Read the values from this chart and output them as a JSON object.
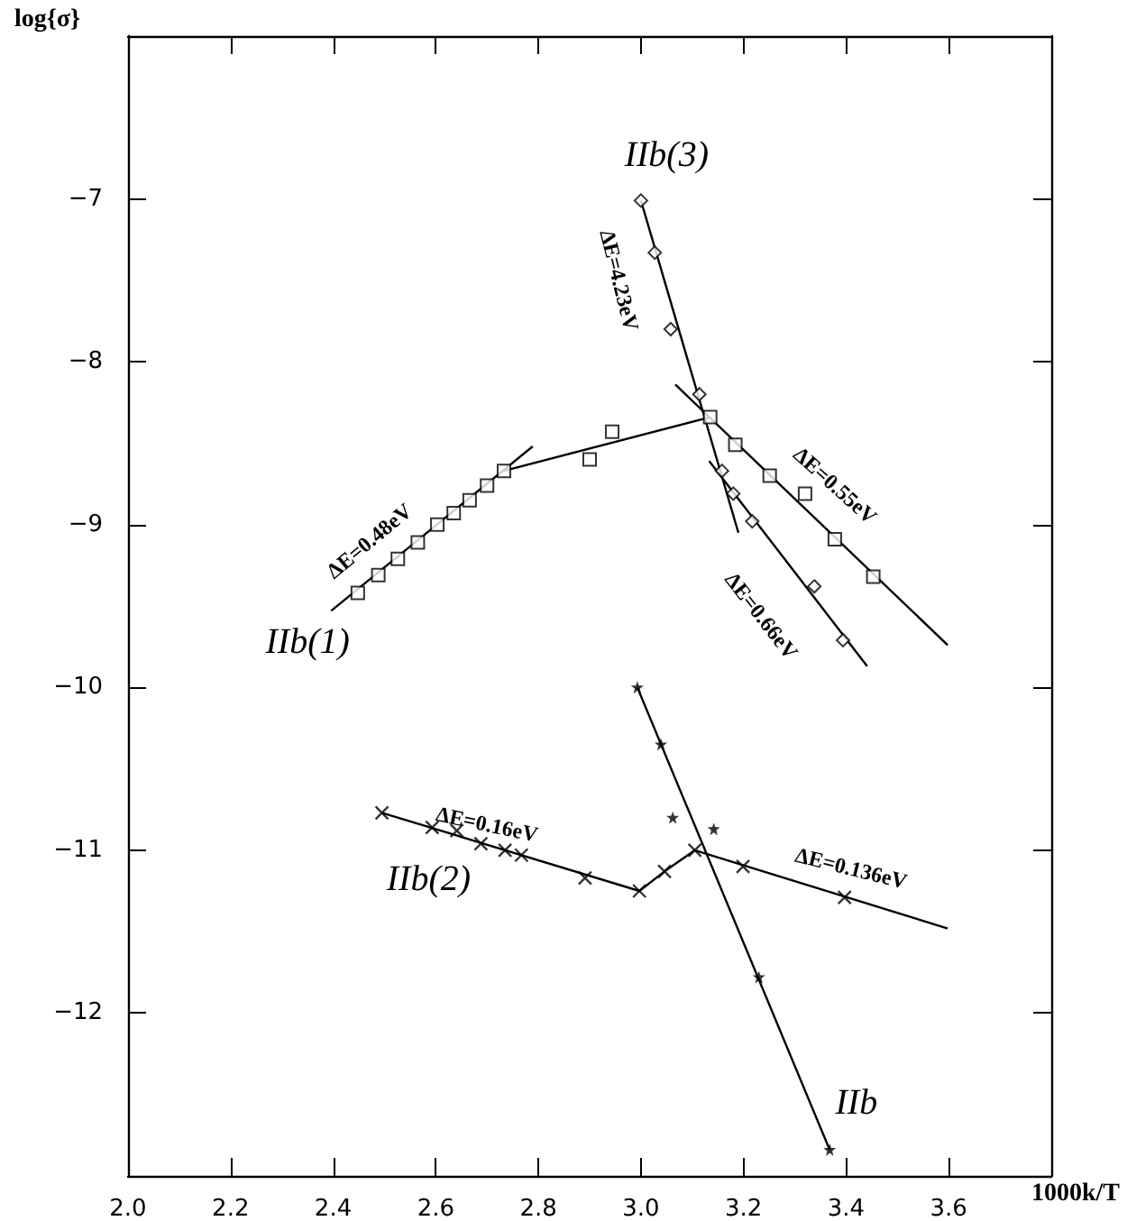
{
  "chart_data": {
    "type": "scatter",
    "xlabel": "1000k/T",
    "ylabel": "log{σ}",
    "xlim": [
      2.0,
      3.8
    ],
    "ylim": [
      -13,
      -6
    ],
    "xticks": [
      {
        "value": 2.0,
        "label": "2.0"
      },
      2.2,
      2.4,
      2.6,
      2.8,
      {
        "value": 3.0,
        "label": "3.0"
      },
      3.2,
      3.4,
      3.6
    ],
    "yticks": [
      -12,
      -11,
      -10,
      -9,
      -8,
      -7
    ],
    "grid": false,
    "series": [
      {
        "marker": "square",
        "color": "#000000",
        "x": [
          2.448,
          2.488,
          2.526,
          2.565,
          2.603,
          2.635,
          2.666,
          2.7,
          2.733,
          2.9,
          2.944,
          3.135,
          3.184,
          3.251,
          3.32,
          3.378,
          3.453
        ],
        "values": [
          -9.42,
          -9.31,
          -9.21,
          -9.11,
          -9.0,
          -8.93,
          -8.85,
          -8.76,
          -8.67,
          -8.6,
          -8.43,
          -8.34,
          -8.51,
          -8.7,
          -8.81,
          -9.09,
          -9.32
        ]
      },
      {
        "marker": "diamond",
        "color": "#000000",
        "x": [
          3.0,
          3.027,
          3.058,
          3.114,
          3.158,
          3.18,
          3.217,
          3.338,
          3.394
        ],
        "values": [
          -7.01,
          -7.33,
          -7.8,
          -8.2,
          -8.67,
          -8.81,
          -8.98,
          -9.38,
          -9.71
        ]
      },
      {
        "marker": "cross",
        "color": "#000000",
        "x": [
          2.495,
          2.593,
          2.641,
          2.688,
          2.735,
          2.767,
          2.891,
          2.997,
          3.046,
          3.105,
          3.199,
          3.397
        ],
        "values": [
          -10.77,
          -10.86,
          -10.88,
          -10.96,
          -11.0,
          -11.03,
          -11.17,
          -11.25,
          -11.13,
          -11.0,
          -11.1,
          -11.29
        ]
      },
      {
        "marker": "star",
        "color": "#000000",
        "x": [
          2.993,
          3.039,
          3.062,
          3.142,
          3.23,
          3.368
        ],
        "values": [
          -10.0,
          -10.35,
          -10.8,
          -10.87,
          -11.78,
          -12.84
        ]
      },
      {
        "type": "line",
        "marker": "none",
        "color": "#000000",
        "x": [
          2.396,
          2.789
        ],
        "values": [
          -9.53,
          -8.52
        ]
      },
      {
        "type": "line",
        "marker": "none",
        "color": "#000000",
        "x": [
          2.733,
          3.135
        ],
        "values": [
          -8.67,
          -8.34
        ]
      },
      {
        "type": "line",
        "marker": "none",
        "color": "#000000",
        "x": [
          3.067,
          3.598
        ],
        "values": [
          -8.14,
          -9.74
        ]
      },
      {
        "type": "line",
        "marker": "none",
        "color": "#000000",
        "x": [
          3.0,
          3.19
        ],
        "values": [
          -7.01,
          -9.05
        ]
      },
      {
        "type": "line",
        "marker": "none",
        "color": "#000000",
        "x": [
          3.133,
          3.441
        ],
        "values": [
          -8.61,
          -9.87
        ]
      },
      {
        "type": "line",
        "marker": "none",
        "color": "#000000",
        "x": [
          2.495,
          2.997,
          3.046,
          3.105,
          3.598
        ],
        "values": [
          -10.77,
          -11.25,
          -11.13,
          -11.0,
          -11.48
        ]
      },
      {
        "type": "line",
        "marker": "none",
        "color": "#000000",
        "x": [
          2.993,
          3.368
        ],
        "values": [
          -10.0,
          -12.84
        ]
      }
    ],
    "annotations": [
      "IIb(3)",
      "IIb(1)",
      "IIb(2)",
      "IIb",
      "ΔE=0.48eV",
      "ΔE=4.23eV",
      "ΔE=0.55eV",
      "ΔE=0.66eV",
      "ΔE=0.16eV",
      "ΔE=0.136eV"
    ]
  }
}
